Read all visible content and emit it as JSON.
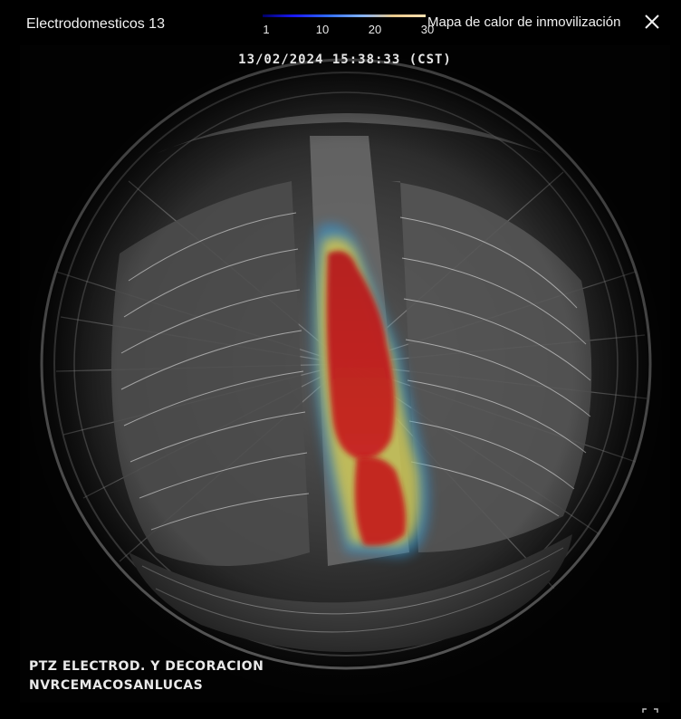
{
  "header": {
    "camera_title": "Electrodomesticos 13",
    "heatmap_title": "Mapa de calor de inmovilización",
    "legend_ticks": [
      "1",
      "10",
      "20",
      "30"
    ],
    "close_icon": "close-icon"
  },
  "video": {
    "timestamp": "13/02/2024 15:38:33 (CST)",
    "overlay_line1": "PTZ ELECTROD. Y DECORACION",
    "overlay_line2": "NVRCEMACOSANLUCAS"
  },
  "colors": {
    "heat_hot": "#c0181c",
    "heat_warm": "#f2d23a",
    "heat_cool": "#2f9be0"
  }
}
